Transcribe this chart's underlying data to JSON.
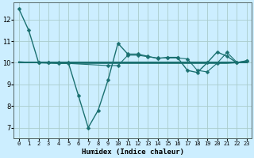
{
  "xlabel": "Humidex (Indice chaleur)",
  "bg_color": "#cceeff",
  "grid_color": "#aacccc",
  "line_color": "#1a7070",
  "xlim": [
    -0.5,
    23.5
  ],
  "ylim": [
    6.5,
    12.8
  ],
  "yticks": [
    7,
    8,
    9,
    10,
    11,
    12
  ],
  "xticks": [
    0,
    1,
    2,
    3,
    4,
    5,
    6,
    7,
    8,
    9,
    10,
    11,
    12,
    13,
    14,
    15,
    16,
    17,
    18,
    19,
    20,
    21,
    22,
    23
  ],
  "series": [
    {
      "x": [
        0,
        1,
        2,
        3,
        4,
        5,
        6,
        7,
        8,
        9,
        10,
        11,
        12,
        13,
        14,
        15,
        16,
        17,
        18,
        19,
        20,
        21,
        22,
        23
      ],
      "y": [
        12.5,
        11.5,
        10.0,
        10.0,
        10.0,
        10.0,
        8.5,
        7.0,
        7.8,
        9.2,
        10.9,
        10.4,
        10.4,
        10.3,
        10.2,
        10.25,
        10.25,
        9.65,
        9.55,
        10.0,
        10.5,
        10.3,
        10.0,
        10.1
      ],
      "marker": "D",
      "markersize": 2.5,
      "linewidth": 1.0
    },
    {
      "x": [
        0,
        1,
        2,
        3,
        4,
        5,
        6,
        7,
        8,
        9,
        10,
        11,
        12,
        13,
        14,
        15,
        16,
        17,
        18,
        19,
        20,
        21,
        22,
        23
      ],
      "y": [
        10.0,
        10.0,
        10.0,
        10.0,
        10.0,
        10.0,
        10.0,
        10.0,
        10.0,
        10.0,
        10.0,
        10.0,
        10.0,
        10.0,
        10.0,
        10.0,
        10.0,
        10.0,
        10.0,
        10.0,
        10.0,
        10.0,
        10.0,
        10.0
      ],
      "marker": null,
      "markersize": 0,
      "linewidth": 1.5
    },
    {
      "x": [
        0,
        1,
        2,
        3,
        4,
        5,
        6,
        7,
        8,
        9,
        10,
        11,
        12,
        13,
        14,
        15,
        16,
        17,
        18,
        19,
        20,
        21,
        22,
        23
      ],
      "y": [
        10.05,
        10.02,
        10.0,
        9.98,
        9.97,
        9.97,
        9.97,
        9.97,
        9.97,
        9.97,
        9.97,
        9.97,
        9.97,
        9.97,
        9.97,
        9.97,
        9.97,
        9.97,
        9.97,
        9.97,
        9.97,
        9.97,
        10.0,
        10.05
      ],
      "marker": null,
      "markersize": 0,
      "linewidth": 0.8
    },
    {
      "x": [
        2,
        3,
        4,
        5,
        9,
        10,
        11,
        12,
        13,
        14,
        15,
        16,
        17,
        18,
        19,
        20,
        21,
        22,
        23
      ],
      "y": [
        10.0,
        10.0,
        9.97,
        9.97,
        9.87,
        9.87,
        10.35,
        10.35,
        10.28,
        10.22,
        10.22,
        10.22,
        10.18,
        9.65,
        9.58,
        9.98,
        10.48,
        10.02,
        10.08
      ],
      "marker": "D",
      "markersize": 2.5,
      "linewidth": 0.8
    }
  ]
}
